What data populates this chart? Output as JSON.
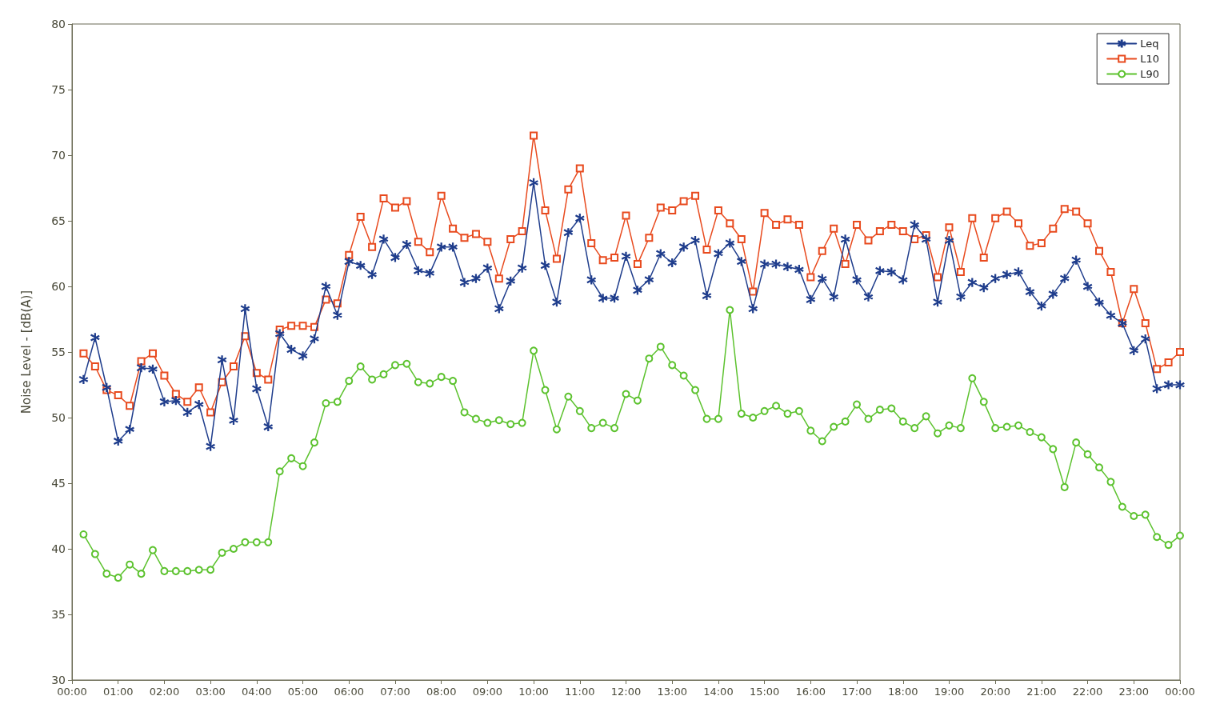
{
  "chart_data": {
    "type": "line",
    "ylabel": "Noise Level - [dB(A)]",
    "x": [
      0.25,
      0.5,
      0.75,
      1,
      1.25,
      1.5,
      1.75,
      2,
      2.25,
      2.5,
      2.75,
      3,
      3.25,
      3.5,
      3.75,
      4,
      4.25,
      4.5,
      4.75,
      5,
      5.25,
      5.5,
      5.75,
      6,
      6.25,
      6.5,
      6.75,
      7,
      7.25,
      7.5,
      7.75,
      8,
      8.25,
      8.5,
      8.75,
      9,
      9.25,
      9.5,
      9.75,
      10,
      10.25,
      10.5,
      10.75,
      11,
      11.25,
      11.5,
      11.75,
      12,
      12.25,
      12.5,
      12.75,
      13,
      13.25,
      13.5,
      13.75,
      14,
      14.25,
      14.5,
      14.75,
      15,
      15.25,
      15.5,
      15.75,
      16,
      16.25,
      16.5,
      16.75,
      17,
      17.25,
      17.5,
      17.75,
      18,
      18.25,
      18.5,
      18.75,
      19,
      19.25,
      19.5,
      19.75,
      20,
      20.25,
      20.5,
      20.75,
      21,
      21.25,
      21.5,
      21.75,
      22,
      22.25,
      22.5,
      22.75,
      23,
      23.25,
      23.5,
      23.75,
      24
    ],
    "series": [
      {
        "name": "Leq",
        "color": "#1f3d8c",
        "marker": "cross",
        "values": [
          52.9,
          56.1,
          52.3,
          48.2,
          49.1,
          53.8,
          53.7,
          51.2,
          51.3,
          50.4,
          51.0,
          47.8,
          54.4,
          49.8,
          58.3,
          52.2,
          49.3,
          56.4,
          55.2,
          54.7,
          56.0,
          60.0,
          57.8,
          61.9,
          61.6,
          60.9,
          63.6,
          62.2,
          63.2,
          61.2,
          61.0,
          63.0,
          63.0,
          60.3,
          60.6,
          61.4,
          58.3,
          60.4,
          61.4,
          67.9,
          61.6,
          58.8,
          64.1,
          65.2,
          60.5,
          59.1,
          59.1,
          62.3,
          59.7,
          60.5,
          62.5,
          61.8,
          63.0,
          63.5,
          59.3,
          62.5,
          63.3,
          61.9,
          58.3,
          61.7,
          61.7,
          61.5,
          61.3,
          59.0,
          60.6,
          59.2,
          63.6,
          60.5,
          59.2,
          61.2,
          61.1,
          60.5,
          64.7,
          63.6,
          58.8,
          63.5,
          59.2,
          60.3,
          59.9,
          60.6,
          60.9,
          61.1,
          59.6,
          58.5,
          59.4,
          60.6,
          62.0,
          60.0,
          58.8,
          57.8,
          57.2,
          55.1,
          56.0,
          52.2,
          52.5,
          52.5
        ]
      },
      {
        "name": "L10",
        "color": "#e84a1e",
        "marker": "square",
        "values": [
          54.9,
          53.9,
          52.1,
          51.7,
          50.9,
          54.3,
          54.9,
          53.2,
          51.8,
          51.2,
          52.3,
          50.4,
          52.7,
          53.9,
          56.2,
          53.4,
          52.9,
          56.7,
          57.0,
          57.0,
          56.9,
          59.0,
          58.7,
          62.4,
          65.3,
          63.0,
          66.7,
          66.0,
          66.5,
          63.4,
          62.6,
          66.9,
          64.4,
          63.7,
          64.0,
          63.4,
          60.6,
          63.6,
          64.2,
          71.5,
          65.8,
          62.1,
          67.4,
          69.0,
          63.3,
          62.0,
          62.2,
          65.4,
          61.7,
          63.7,
          66.0,
          65.8,
          66.5,
          66.9,
          62.8,
          65.8,
          64.8,
          63.6,
          59.6,
          65.6,
          64.7,
          65.1,
          64.7,
          60.7,
          62.7,
          64.4,
          61.7,
          64.7,
          63.5,
          64.2,
          64.7,
          64.2,
          63.6,
          63.9,
          60.7,
          64.5,
          61.1,
          65.2,
          62.2,
          65.2,
          65.7,
          64.8,
          63.1,
          63.3,
          64.4,
          65.9,
          65.7,
          64.8,
          62.7,
          61.1,
          57.2,
          59.8,
          57.2,
          53.7,
          54.2,
          55.0
        ]
      },
      {
        "name": "L90",
        "color": "#5cc22e",
        "marker": "circle",
        "values": [
          41.1,
          39.6,
          38.1,
          37.8,
          38.8,
          38.1,
          39.9,
          38.3,
          38.3,
          38.3,
          38.4,
          38.4,
          39.7,
          40.0,
          40.5,
          40.5,
          40.5,
          45.9,
          46.9,
          46.3,
          48.1,
          51.1,
          51.2,
          52.8,
          53.9,
          52.9,
          53.3,
          54.0,
          54.1,
          52.7,
          52.6,
          53.1,
          52.8,
          50.4,
          49.9,
          49.6,
          49.8,
          49.5,
          49.6,
          55.1,
          52.1,
          49.1,
          51.6,
          50.5,
          49.2,
          49.6,
          49.2,
          51.8,
          51.3,
          54.5,
          55.4,
          54.0,
          53.2,
          52.1,
          49.9,
          49.9,
          58.2,
          50.3,
          50.0,
          50.5,
          50.9,
          50.3,
          50.5,
          49.0,
          48.2,
          49.3,
          49.7,
          51.0,
          49.9,
          50.6,
          50.7,
          49.7,
          49.2,
          50.1,
          48.8,
          49.4,
          49.2,
          53.0,
          51.2,
          49.2,
          49.3,
          49.4,
          48.9,
          48.5,
          47.6,
          44.7,
          48.1,
          47.2,
          46.2,
          45.1,
          43.2,
          42.5,
          42.6,
          40.9,
          40.3,
          41.0
        ]
      }
    ],
    "xlim": [
      0,
      24
    ],
    "xticks": [
      {
        "value": 0,
        "label": "00:00"
      },
      {
        "value": 1,
        "label": "01:00"
      },
      {
        "value": 2,
        "label": "02:00"
      },
      {
        "value": 3,
        "label": "03:00"
      },
      {
        "value": 4,
        "label": "04:00"
      },
      {
        "value": 5,
        "label": "05:00"
      },
      {
        "value": 6,
        "label": "06:00"
      },
      {
        "value": 7,
        "label": "07:00"
      },
      {
        "value": 8,
        "label": "08:00"
      },
      {
        "value": 9,
        "label": "09:00"
      },
      {
        "value": 10,
        "label": "10:00"
      },
      {
        "value": 11,
        "label": "11:00"
      },
      {
        "value": 12,
        "label": "12:00"
      },
      {
        "value": 13,
        "label": "13:00"
      },
      {
        "value": 14,
        "label": "14:00"
      },
      {
        "value": 15,
        "label": "15:00"
      },
      {
        "value": 16,
        "label": "16:00"
      },
      {
        "value": 17,
        "label": "17:00"
      },
      {
        "value": 18,
        "label": "18:00"
      },
      {
        "value": 19,
        "label": "19:00"
      },
      {
        "value": 20,
        "label": "20:00"
      },
      {
        "value": 21,
        "label": "21:00"
      },
      {
        "value": 22,
        "label": "22:00"
      },
      {
        "value": 23,
        "label": "23:00"
      },
      {
        "value": 24,
        "label": "00:00"
      }
    ],
    "ylim": [
      30,
      80
    ],
    "yticks": [
      30,
      35,
      40,
      45,
      50,
      55,
      60,
      65,
      70,
      75,
      80
    ],
    "grid": false,
    "legend": "top right",
    "line_style": "solid"
  }
}
